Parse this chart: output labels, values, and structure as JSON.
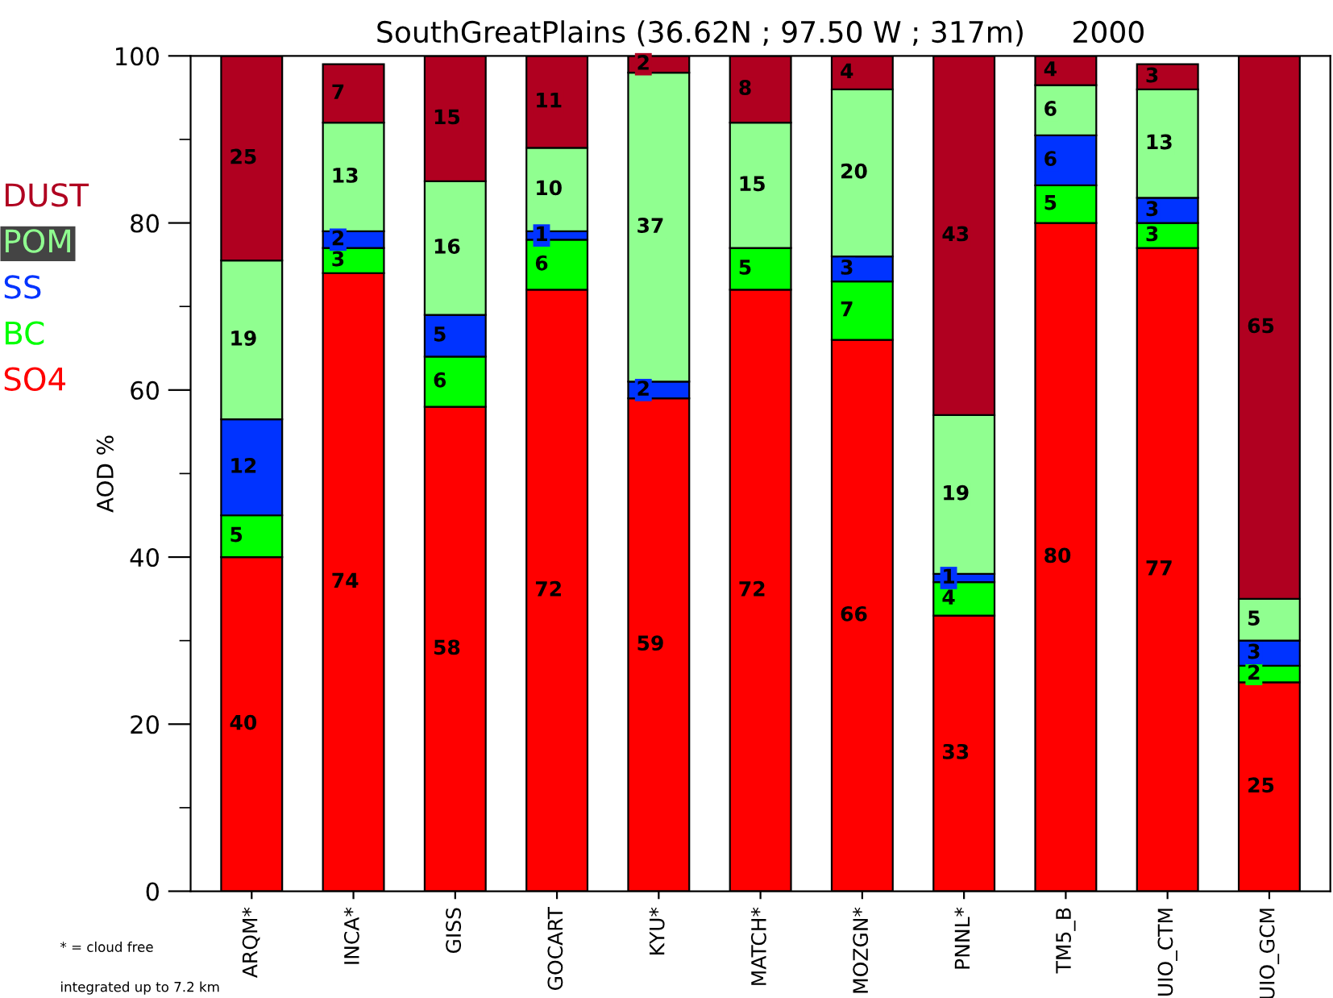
{
  "chart_data": {
    "type": "bar",
    "stacked": true,
    "title": "SouthGreatPlains (36.62N ; 97.50 W ; 317m)     2000",
    "ylabel": "AOD %",
    "categories": [
      "ARQM*",
      "INCA*",
      "GISS",
      "GOCART",
      "KYU*",
      "MATCH*",
      "MOZGN*",
      "PNNL*",
      "TM5_B",
      "UIO_CTM",
      "UIO_GCM"
    ],
    "series": [
      {
        "name": "SO4",
        "color": "#ff0000",
        "values": [
          40,
          74,
          58,
          72,
          59,
          72,
          66,
          33,
          80,
          77,
          25
        ],
        "value_labels": [
          "40",
          "74",
          "58",
          "72",
          "59",
          "72",
          "66",
          "33",
          "80",
          "77",
          "25"
        ]
      },
      {
        "name": "BC",
        "color": "#00ff00",
        "values": [
          5,
          3,
          6,
          6,
          null,
          5,
          7,
          4,
          4.5,
          3,
          2
        ],
        "value_labels": [
          "5",
          "3",
          "6",
          "6",
          null,
          "5",
          "7",
          "4",
          "5",
          "3",
          "2"
        ]
      },
      {
        "name": "SS",
        "color": "#0033ff",
        "values": [
          11.5,
          2,
          5,
          1,
          2,
          null,
          3,
          1,
          6,
          3,
          3
        ],
        "value_labels": [
          "12",
          "2",
          "5",
          "1",
          "2",
          null,
          "3",
          "1",
          "6",
          "3",
          "3"
        ]
      },
      {
        "name": "POM",
        "color": "#90ff90",
        "values": [
          19,
          13,
          16,
          10,
          37,
          15,
          20,
          19,
          6,
          13,
          5
        ],
        "value_labels": [
          "19",
          "13",
          "16",
          "10",
          "37",
          "15",
          "20",
          "19",
          "6",
          "13",
          "5"
        ]
      },
      {
        "name": "DUST",
        "color": "#b00020",
        "values": [
          24.5,
          7,
          15,
          11,
          2,
          8,
          4,
          43,
          3.5,
          3,
          65
        ],
        "value_labels": [
          "25",
          "7",
          "15",
          "11",
          "2",
          "8",
          "4",
          "43",
          "4",
          "3",
          "65"
        ]
      }
    ],
    "ylim": [
      0,
      100
    ],
    "yticks": [
      0,
      20,
      40,
      60,
      80,
      100
    ],
    "legend": "left",
    "grid": false,
    "annotations": [
      "* = cloud free",
      "integrated up to 7.2 km"
    ]
  }
}
